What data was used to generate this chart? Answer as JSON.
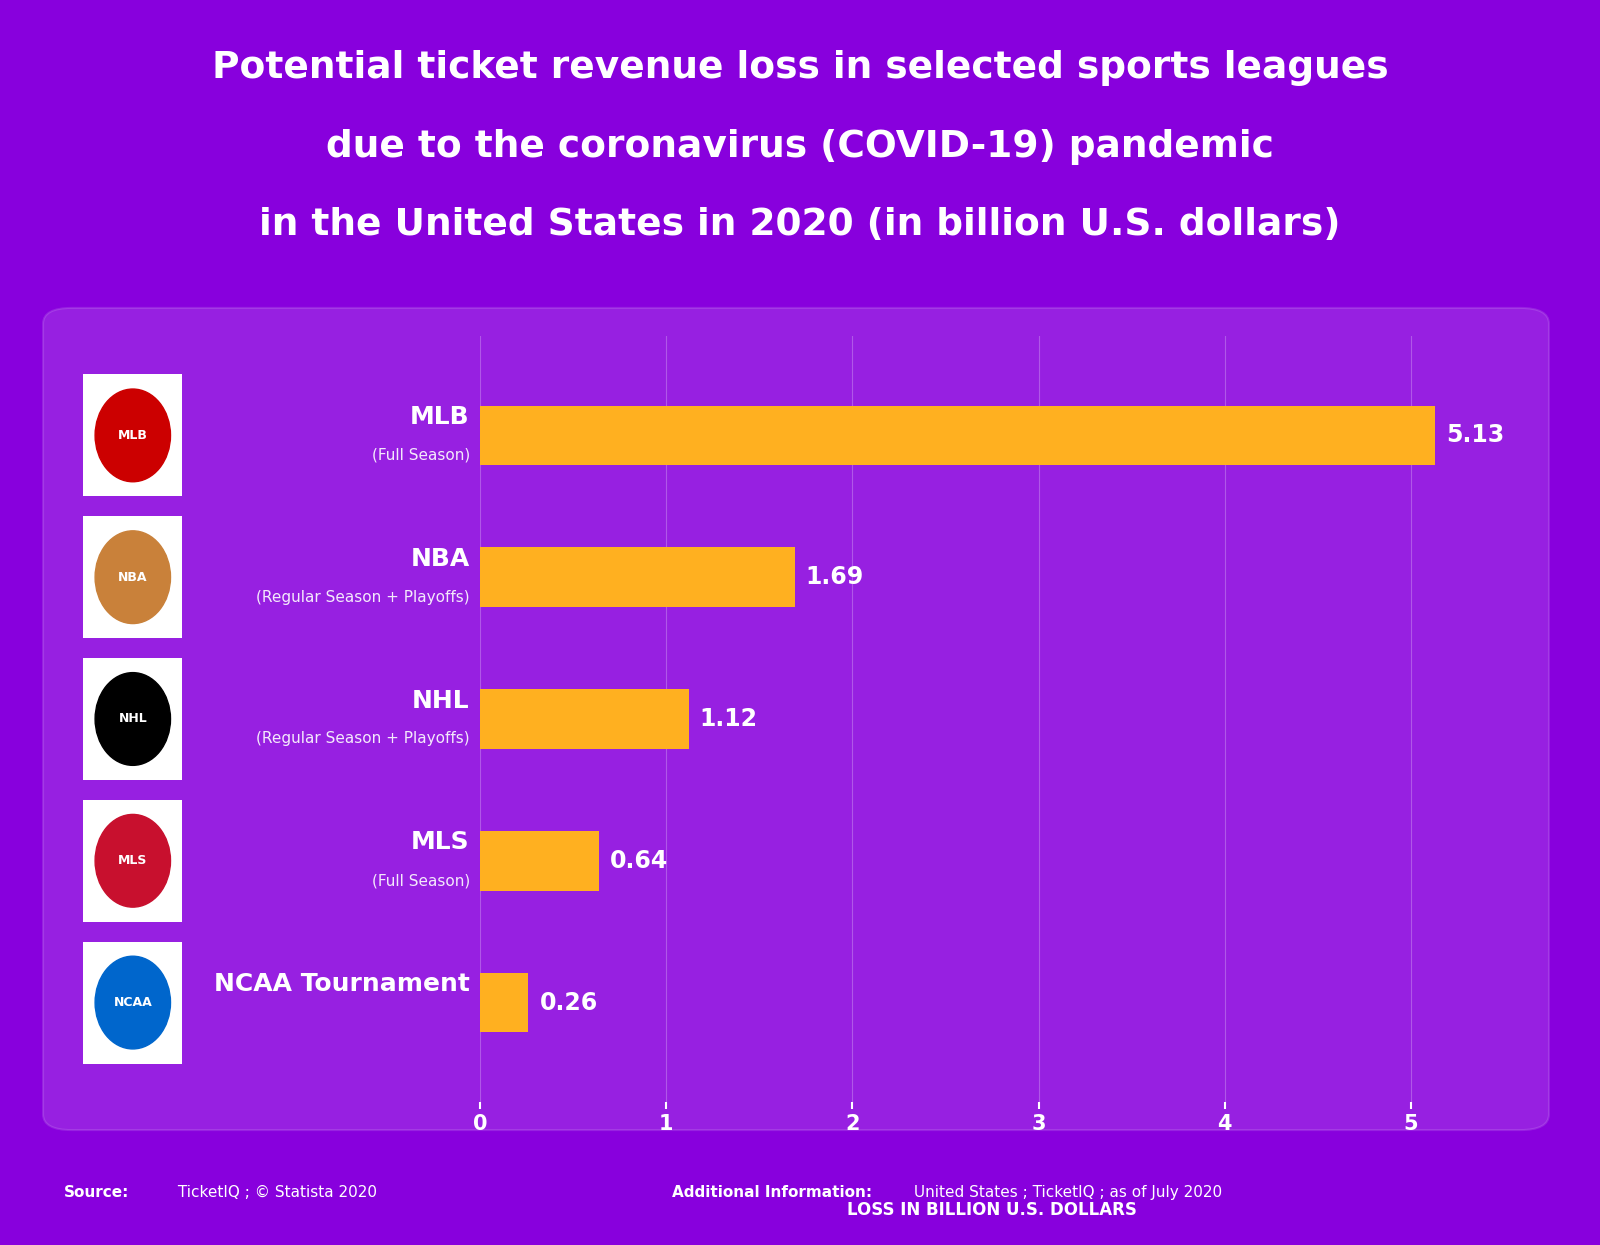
{
  "title_line1": "Potential ticket revenue loss in selected sports leagues",
  "title_line2": "due to the coronavirus (COVID-19) pandemic",
  "title_line3": "in the United States in 2020 (in billion U.S. dollars)",
  "categories": [
    "MLB",
    "NBA",
    "NHL",
    "MLS",
    "NCAA Tournament"
  ],
  "subtitles": [
    "(Full Season)",
    "(Regular Season + Playoffs)",
    "(Regular Season + Playoffs)",
    "(Full Season)",
    ""
  ],
  "values": [
    5.13,
    1.69,
    1.12,
    0.64,
    0.26
  ],
  "bar_color": "#FFA500",
  "bg_color": "#8800DD",
  "text_color": "#FFFFFF",
  "xlabel": "LOSS IN BILLION U.S. DOLLARS",
  "xlim": [
    0,
    5.5
  ],
  "xticks": [
    0,
    1,
    2,
    3,
    4,
    5
  ],
  "source_bold": "Source:",
  "source_rest": " TicketIQ ; © Statista 2020",
  "additional_bold": "Additional Information:",
  "additional_rest": " United States ; TicketIQ ; as of July 2020",
  "bar_height": 0.42
}
